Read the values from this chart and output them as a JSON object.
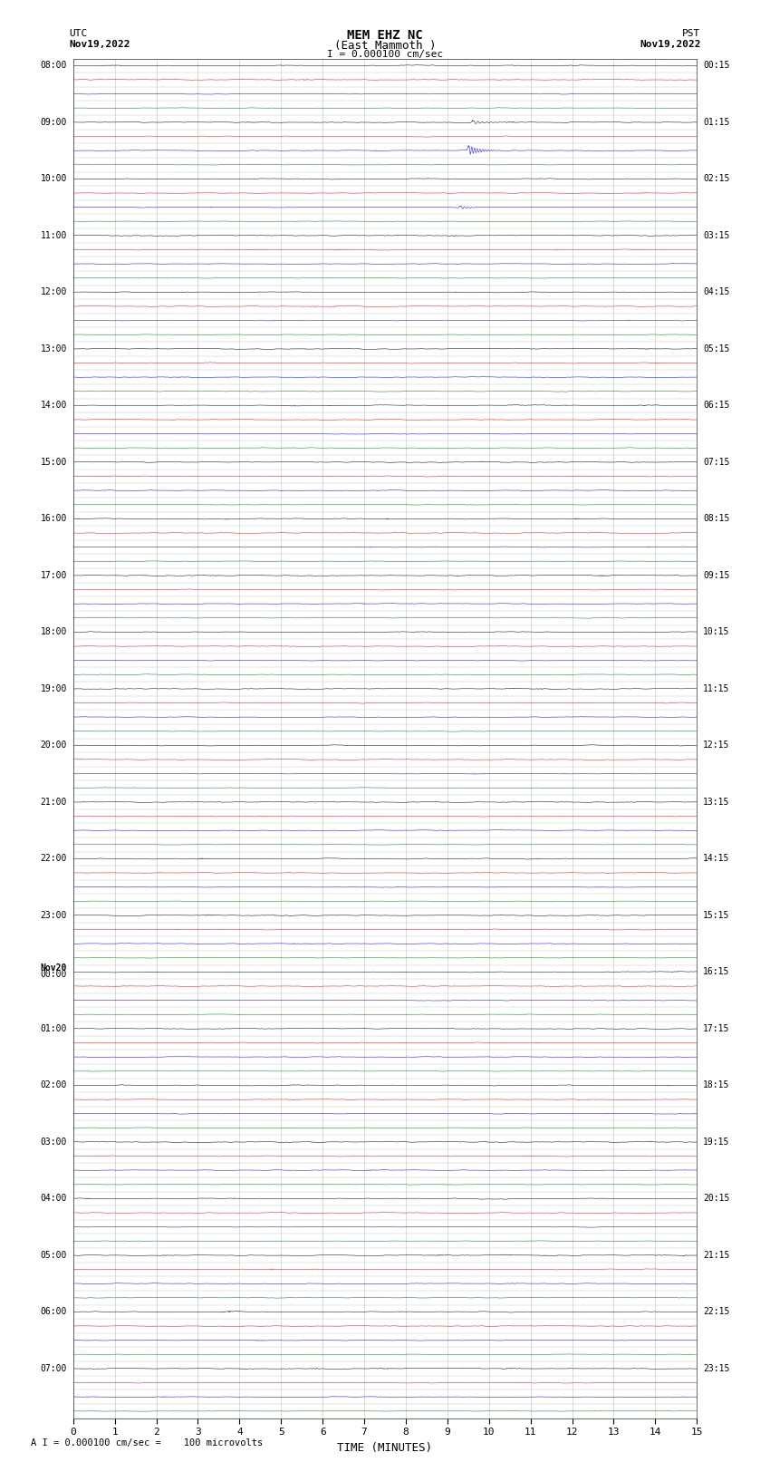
{
  "title_line1": "MEM EHZ NC",
  "title_line2": "(East Mammoth )",
  "title_line3": "I = 0.000100 cm/sec",
  "label_left_top1": "UTC",
  "label_left_top2": "Nov19,2022",
  "label_right_top1": "PST",
  "label_right_top2": "Nov19,2022",
  "xlabel": "TIME (MINUTES)",
  "footnote": "A I = 0.000100 cm/sec =    100 microvolts",
  "xmin": 0,
  "xmax": 15,
  "bg_color": "#ffffff",
  "trace_colors_cycle": [
    "black",
    "red",
    "blue",
    "green"
  ],
  "n_groups": 24,
  "traces_per_group": 4,
  "left_labels": [
    "08:00",
    "",
    "",
    "",
    "09:00",
    "",
    "",
    "",
    "10:00",
    "",
    "",
    "",
    "11:00",
    "",
    "",
    "",
    "12:00",
    "",
    "",
    "",
    "13:00",
    "",
    "",
    "",
    "14:00",
    "",
    "",
    "",
    "15:00",
    "",
    "",
    "",
    "16:00",
    "",
    "",
    "",
    "17:00",
    "",
    "",
    "",
    "18:00",
    "",
    "",
    "",
    "19:00",
    "",
    "",
    "",
    "20:00",
    "",
    "",
    "",
    "21:00",
    "",
    "",
    "",
    "22:00",
    "",
    "",
    "",
    "23:00",
    "",
    "",
    "",
    "Nov20\n00:00",
    "",
    "",
    "",
    "01:00",
    "",
    "",
    "",
    "02:00",
    "",
    "",
    "",
    "03:00",
    "",
    "",
    "",
    "04:00",
    "",
    "",
    "",
    "05:00",
    "",
    "",
    "",
    "06:00",
    "",
    "",
    "",
    "07:00",
    "",
    "",
    ""
  ],
  "right_labels": [
    "00:15",
    "",
    "",
    "",
    "01:15",
    "",
    "",
    "",
    "02:15",
    "",
    "",
    "",
    "03:15",
    "",
    "",
    "",
    "04:15",
    "",
    "",
    "",
    "05:15",
    "",
    "",
    "",
    "06:15",
    "",
    "",
    "",
    "07:15",
    "",
    "",
    "",
    "08:15",
    "",
    "",
    "",
    "09:15",
    "",
    "",
    "",
    "10:15",
    "",
    "",
    "",
    "11:15",
    "",
    "",
    "",
    "12:15",
    "",
    "",
    "",
    "13:15",
    "",
    "",
    "",
    "14:15",
    "",
    "",
    "",
    "15:15",
    "",
    "",
    "",
    "16:15",
    "",
    "",
    "",
    "17:15",
    "",
    "",
    "",
    "18:15",
    "",
    "",
    "",
    "19:15",
    "",
    "",
    "",
    "20:15",
    "",
    "",
    "",
    "21:15",
    "",
    "",
    "",
    "22:15",
    "",
    "",
    "",
    "23:15",
    "",
    "",
    ""
  ],
  "noise_base": 0.012,
  "spike_prob": 0.003,
  "spike_amp": 0.15
}
